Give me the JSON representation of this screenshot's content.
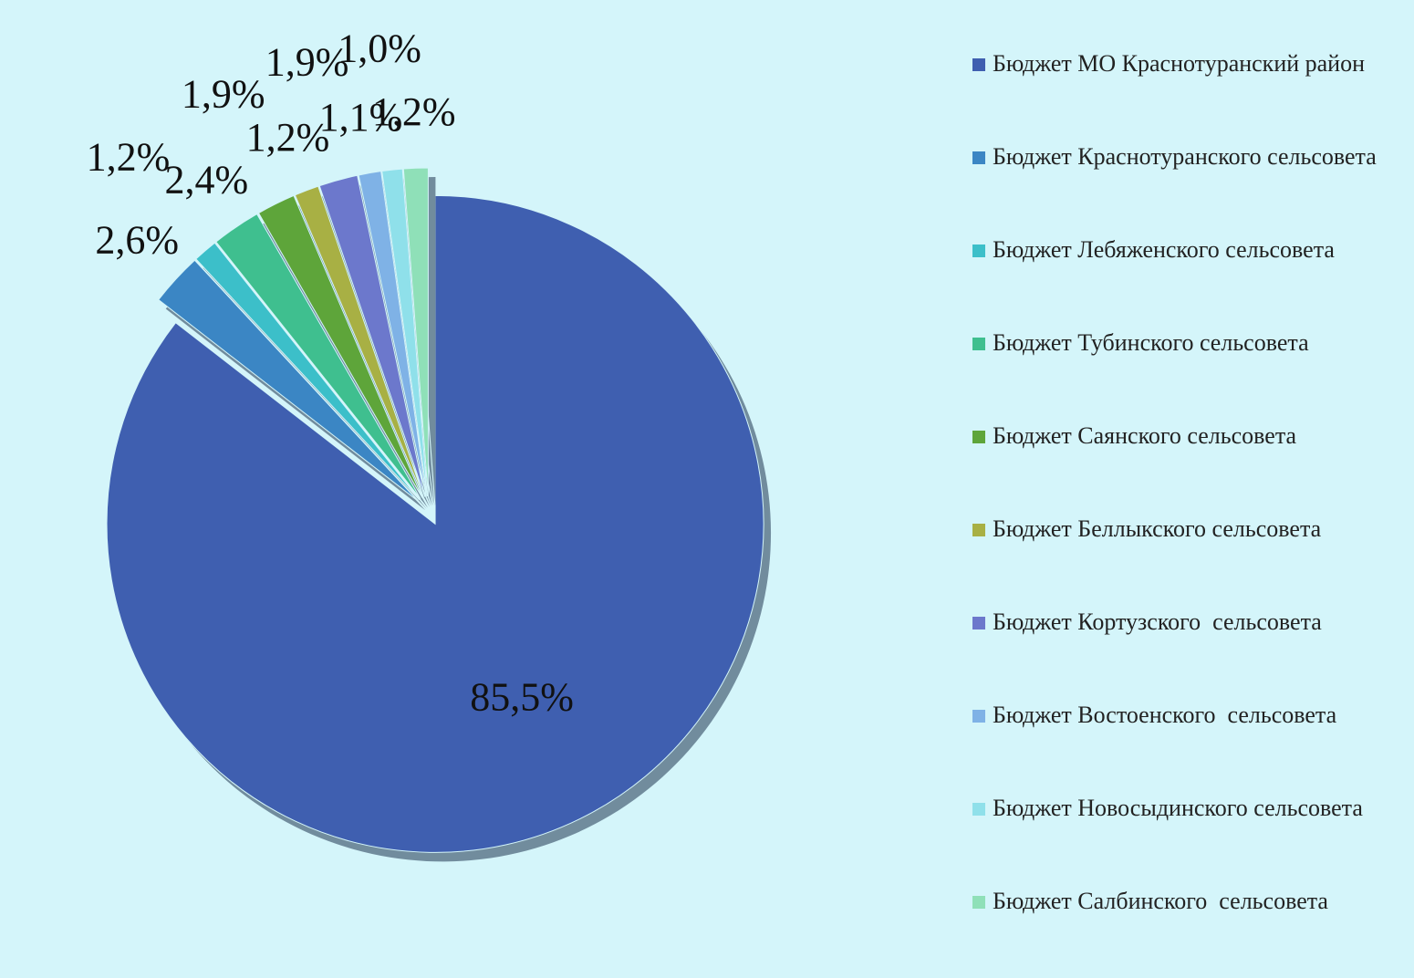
{
  "chart_data": {
    "type": "pie",
    "categories": [
      "Бюджет МО Краснотуранский район",
      "Бюджет Краснотуранского сельсовета",
      "Бюджет Лебяженского сельсовета",
      "Бюджет Тубинского сельсовета",
      "Бюджет Саянского сельсовета",
      "Бюджет Беллыкского сельсовета",
      "Бюджет Кортузского  сельсовета",
      "Бюджет Востоенского  сельсовета",
      "Бюджет Новосыдинского сельсовета",
      "Бюджет Салбинского  сельсовета"
    ],
    "values": [
      85.5,
      2.6,
      1.2,
      2.4,
      1.9,
      1.2,
      1.9,
      1.1,
      1.0,
      1.2
    ],
    "value_labels": [
      "85,5%",
      "2,6%",
      "1,2%",
      "2,4%",
      "1,9%",
      "1,2%",
      "1,9%",
      "1,1%",
      "1,0%",
      "1,2%"
    ],
    "colors": [
      "#3f5fb0",
      "#3b86c4",
      "#3cbfc9",
      "#3fbf8f",
      "#5ea53a",
      "#a8b044",
      "#6c78cc",
      "#7fb2e6",
      "#8fe0ea",
      "#8fe0b8"
    ],
    "legend": "right"
  }
}
